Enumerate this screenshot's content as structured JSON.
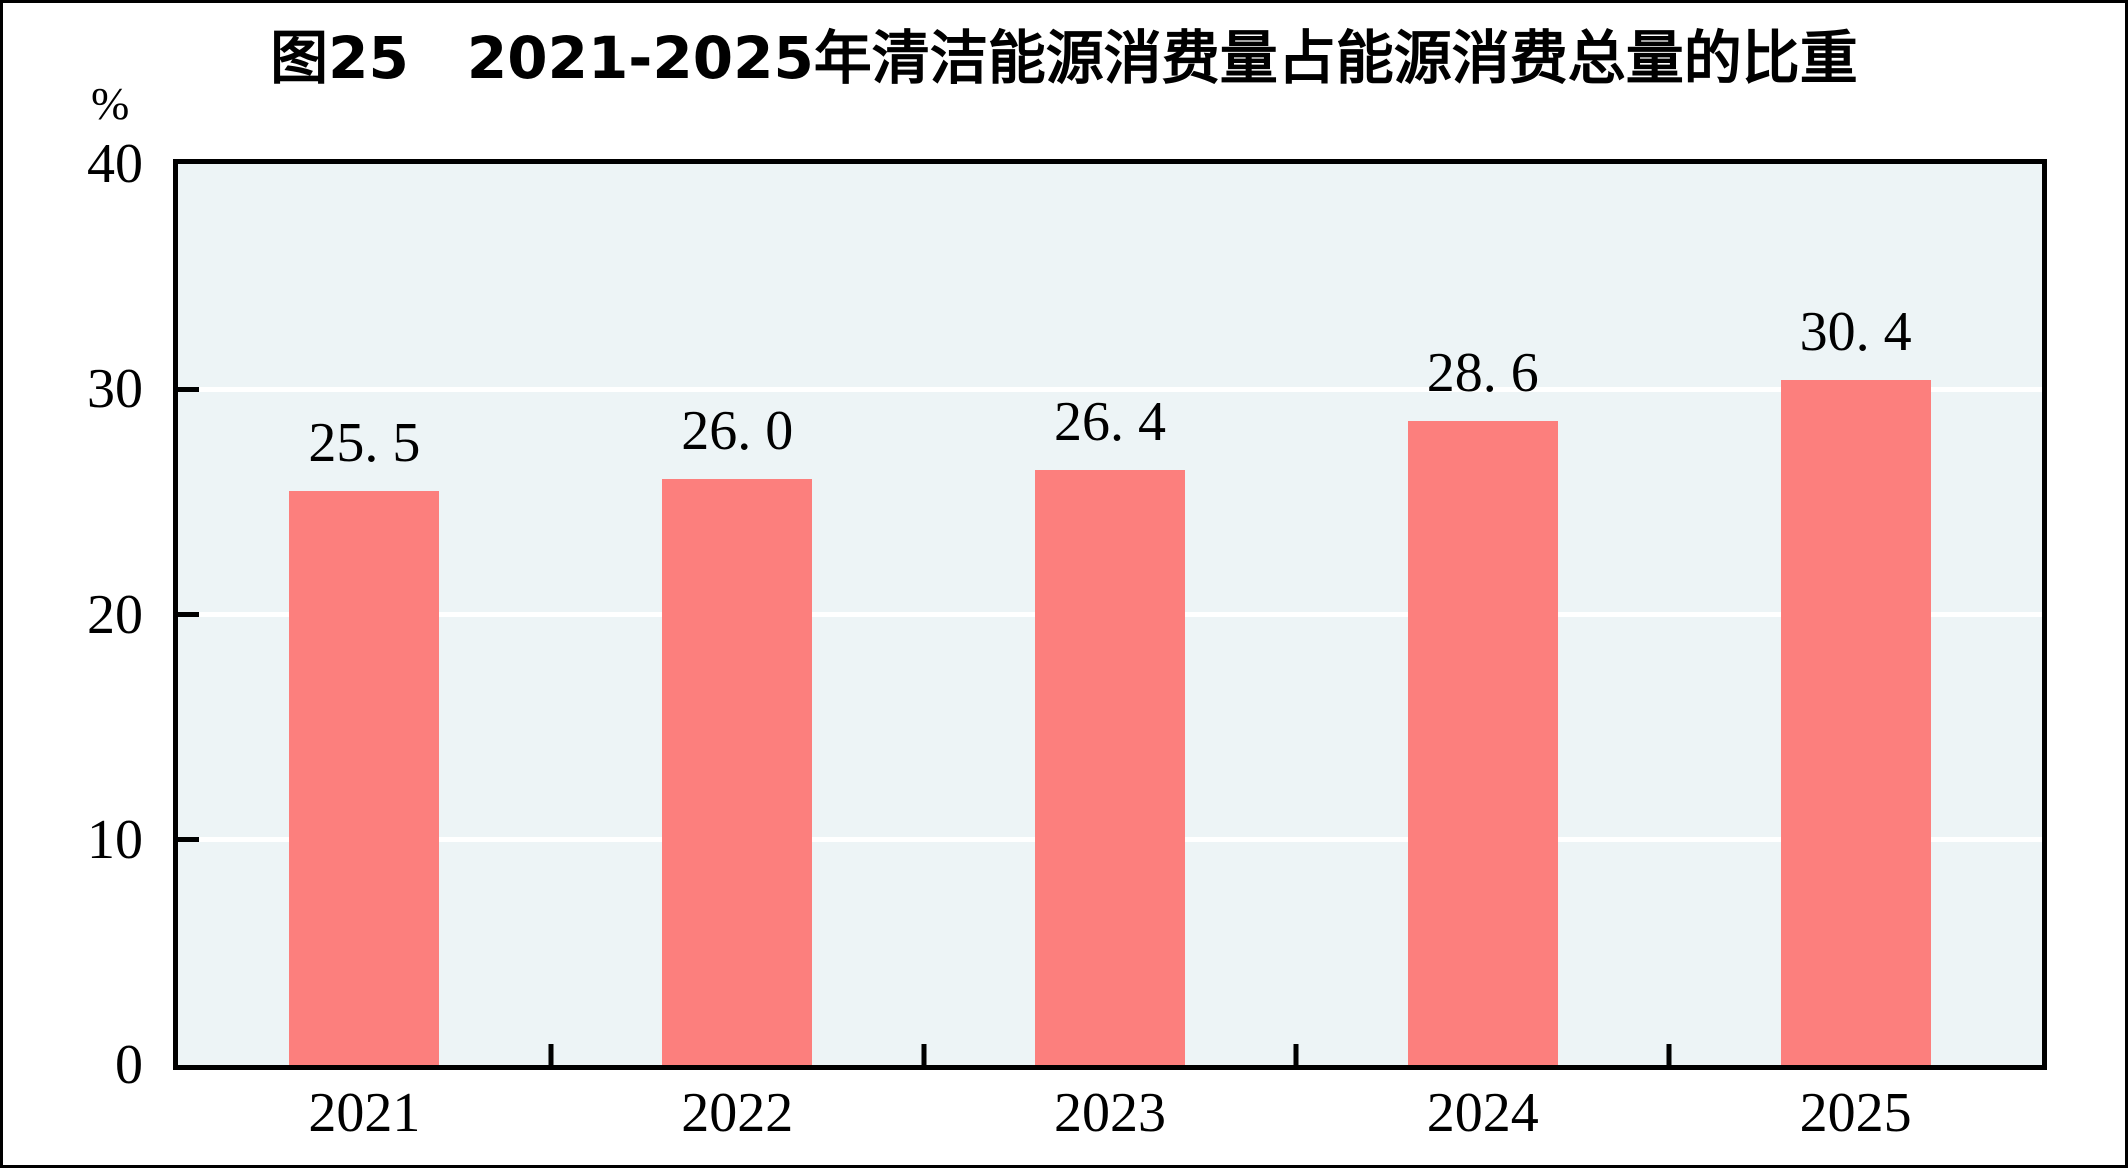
{
  "chart_data": {
    "type": "bar",
    "title": "图25　2021-2025年清洁能源消费量占能源消费总量的比重",
    "unit": "%",
    "categories": [
      "2021",
      "2022",
      "2023",
      "2024",
      "2025"
    ],
    "values": [
      25.5,
      26.0,
      26.4,
      28.6,
      30.4
    ],
    "bar_labels": [
      "25. 5",
      "26. 0",
      "26. 4",
      "28. 6",
      "30. 4"
    ],
    "xlabel": "",
    "ylabel": "%",
    "ylim": [
      0,
      40
    ],
    "yticks": [
      0,
      10,
      20,
      30,
      40
    ],
    "grid": "horizontal",
    "legend": "none",
    "colors": {
      "bar": "#fc7f7d",
      "plot_background": "#edf4f6",
      "gridline": "#ffffff",
      "axis": "#000000",
      "text": "#000000",
      "page_background": "#ffffff"
    }
  }
}
